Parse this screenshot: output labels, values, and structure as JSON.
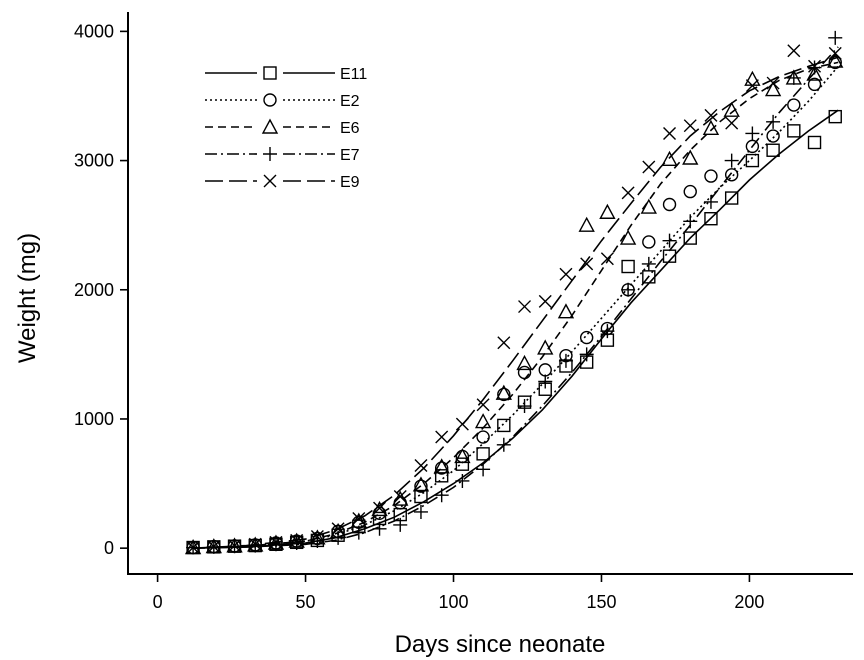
{
  "chart_data": {
    "type": "scatter",
    "xlabel": "Days since neonate",
    "ylabel": "Weight (mg)",
    "xlim": [
      -10,
      235
    ],
    "ylim": [
      -200,
      4150
    ],
    "xticks": [
      0,
      50,
      100,
      150,
      200
    ],
    "yticks": [
      0,
      1000,
      2000,
      3000,
      4000
    ],
    "legend_position": "top-left",
    "grid": false,
    "series": [
      {
        "name": "E11",
        "marker": "square",
        "dash": "solid",
        "x": [
          12,
          19,
          26,
          33,
          40,
          47,
          54,
          61,
          68,
          75,
          82,
          89,
          96,
          103,
          110,
          117,
          124,
          131,
          138,
          145,
          152,
          159,
          166,
          173,
          180,
          187,
          194,
          201,
          208,
          215,
          222,
          229
        ],
        "y": [
          5,
          10,
          15,
          20,
          30,
          45,
          60,
          100,
          170,
          230,
          260,
          400,
          560,
          650,
          730,
          950,
          1130,
          1230,
          1410,
          1440,
          1610,
          2180,
          2100,
          2260,
          2400,
          2550,
          2710,
          3000,
          3080,
          3230,
          3140,
          3340
        ],
        "fit_x": [
          12,
          30,
          50,
          60,
          70,
          80,
          90,
          100,
          110,
          120,
          130,
          140,
          150,
          160,
          170,
          180,
          190,
          200,
          210,
          220,
          230
        ],
        "fit_y": [
          0,
          10,
          40,
          80,
          150,
          240,
          360,
          500,
          660,
          850,
          1070,
          1330,
          1620,
          1900,
          2150,
          2400,
          2620,
          2850,
          3050,
          3230,
          3390
        ]
      },
      {
        "name": "E2",
        "marker": "circle",
        "dash": "dotted",
        "x": [
          12,
          19,
          26,
          33,
          40,
          47,
          54,
          61,
          68,
          75,
          82,
          89,
          96,
          103,
          110,
          117,
          124,
          131,
          138,
          145,
          152,
          159,
          166,
          173,
          180,
          187,
          194,
          201,
          208,
          215,
          222,
          229
        ],
        "y": [
          5,
          12,
          18,
          25,
          40,
          55,
          75,
          130,
          200,
          270,
          350,
          480,
          620,
          710,
          860,
          1190,
          1360,
          1380,
          1490,
          1630,
          1700,
          2000,
          2370,
          2660,
          2760,
          2880,
          2890,
          3110,
          3190,
          3430,
          3590,
          3760
        ],
        "fit_x": [
          12,
          30,
          50,
          60,
          70,
          80,
          90,
          100,
          110,
          120,
          130,
          140,
          150,
          160,
          170,
          180,
          190,
          200,
          210,
          220,
          230
        ],
        "fit_y": [
          0,
          15,
          55,
          100,
          180,
          290,
          430,
          600,
          810,
          1030,
          1270,
          1520,
          1780,
          2040,
          2300,
          2560,
          2790,
          3000,
          3220,
          3460,
          3730
        ]
      },
      {
        "name": "E6",
        "marker": "triangle",
        "dash": "dashed",
        "x": [
          12,
          19,
          26,
          33,
          40,
          47,
          54,
          61,
          68,
          75,
          82,
          89,
          96,
          103,
          110,
          117,
          124,
          131,
          138,
          145,
          152,
          159,
          166,
          173,
          180,
          187,
          194,
          201,
          208,
          215,
          222,
          229
        ],
        "y": [
          5,
          12,
          18,
          25,
          40,
          55,
          80,
          130,
          210,
          300,
          380,
          490,
          630,
          710,
          980,
          1200,
          1430,
          1550,
          1830,
          2500,
          2600,
          2400,
          2640,
          3010,
          3020,
          3250,
          3390,
          3630,
          3550,
          3640,
          3670,
          3770
        ],
        "fit_x": [
          12,
          30,
          50,
          60,
          70,
          80,
          90,
          100,
          110,
          120,
          130,
          140,
          150,
          160,
          170,
          180,
          190,
          200,
          210,
          220,
          230
        ],
        "fit_y": [
          0,
          15,
          55,
          110,
          200,
          330,
          500,
          700,
          930,
          1190,
          1480,
          1800,
          2150,
          2500,
          2820,
          3080,
          3300,
          3480,
          3620,
          3710,
          3760
        ]
      },
      {
        "name": "E7",
        "marker": "plus",
        "dash": "dashdot",
        "x": [
          12,
          19,
          26,
          33,
          40,
          47,
          54,
          61,
          68,
          75,
          82,
          89,
          96,
          103,
          110,
          117,
          124,
          131,
          138,
          145,
          152,
          159,
          166,
          173,
          180,
          187,
          194,
          201,
          208,
          215,
          222,
          229
        ],
        "y": [
          5,
          10,
          15,
          20,
          30,
          40,
          55,
          80,
          120,
          150,
          180,
          280,
          410,
          520,
          610,
          800,
          1100,
          1290,
          1450,
          1500,
          1680,
          2000,
          2200,
          2380,
          2530,
          2680,
          3000,
          3210,
          3300,
          3640,
          3720,
          3950
        ],
        "fit_x": [
          12,
          30,
          50,
          60,
          70,
          80,
          90,
          100,
          110,
          120,
          130,
          140,
          150,
          160,
          170,
          180,
          190,
          200,
          210,
          220,
          230
        ],
        "fit_y": [
          0,
          8,
          30,
          60,
          120,
          210,
          330,
          470,
          650,
          860,
          1100,
          1360,
          1640,
          1930,
          2220,
          2500,
          2790,
          3080,
          3370,
          3630,
          3880
        ]
      },
      {
        "name": "E9",
        "marker": "x",
        "dash": "longdash",
        "x": [
          12,
          19,
          26,
          33,
          40,
          47,
          54,
          61,
          68,
          75,
          82,
          89,
          96,
          103,
          110,
          117,
          124,
          131,
          138,
          145,
          152,
          159,
          166,
          173,
          180,
          187,
          194,
          201,
          208,
          215,
          222,
          229
        ],
        "y": [
          5,
          12,
          20,
          30,
          45,
          60,
          90,
          150,
          230,
          310,
          400,
          640,
          860,
          960,
          1110,
          1590,
          1870,
          1910,
          2120,
          2200,
          2240,
          2750,
          2950,
          3210,
          3270,
          3350,
          3290,
          3580,
          3600,
          3850,
          3730,
          3830
        ],
        "fit_x": [
          12,
          30,
          50,
          60,
          70,
          80,
          90,
          100,
          110,
          120,
          130,
          140,
          150,
          160,
          170,
          180,
          190,
          200,
          210,
          220,
          230
        ],
        "fit_y": [
          0,
          20,
          70,
          140,
          250,
          410,
          620,
          870,
          1150,
          1450,
          1760,
          2070,
          2380,
          2670,
          2950,
          3190,
          3380,
          3540,
          3650,
          3730,
          3800
        ]
      }
    ]
  }
}
